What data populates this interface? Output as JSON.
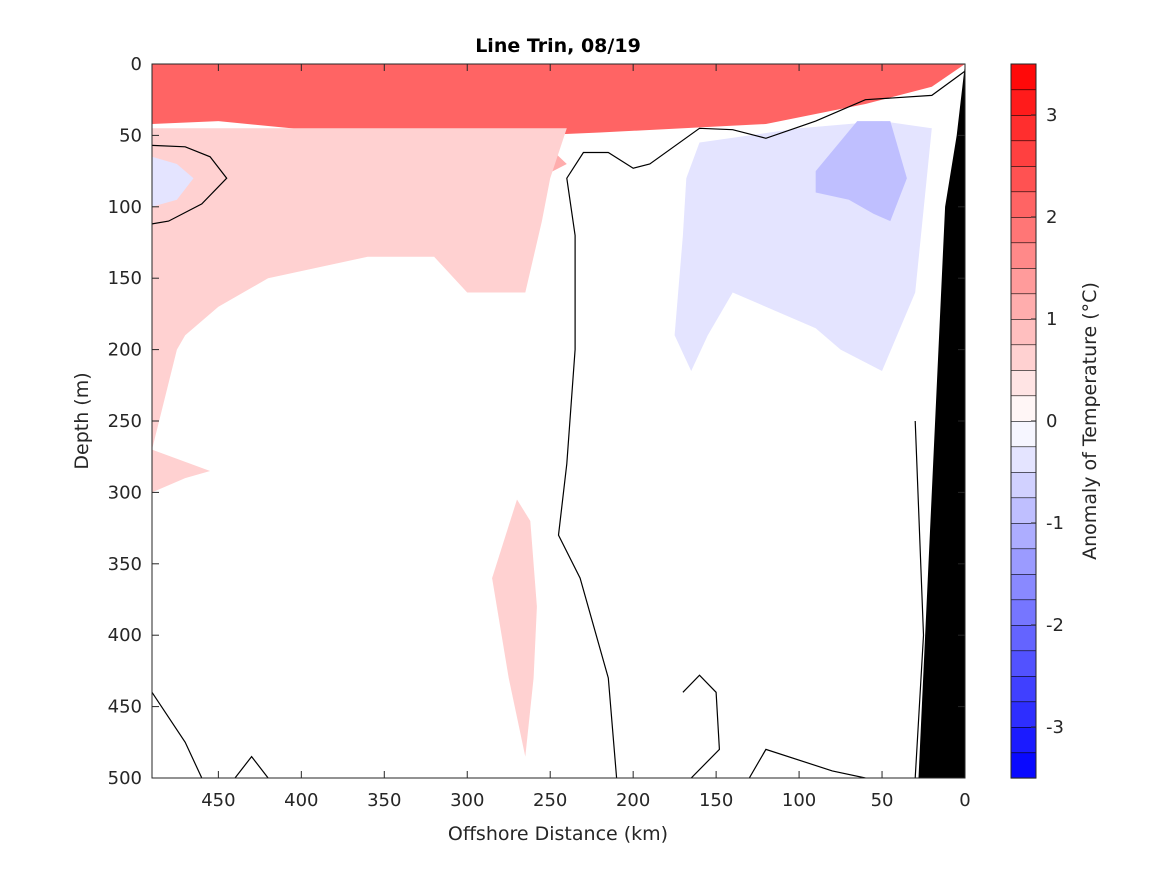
{
  "chart_data": {
    "type": "heatmap",
    "title": "Line Trin, 08/19",
    "xlabel": "Offshore Distance (km)",
    "ylabel": "Depth (m)",
    "colorbar_label": "Anomaly of Temperature (°C)",
    "x_reversed": true,
    "y_reversed": true,
    "xlim": [
      0,
      490
    ],
    "ylim": [
      0,
      500
    ],
    "x_ticks": [
      450,
      400,
      350,
      300,
      250,
      200,
      150,
      100,
      50,
      0
    ],
    "y_ticks": [
      0,
      50,
      100,
      150,
      200,
      250,
      300,
      350,
      400,
      450,
      500
    ],
    "colorbar_range": [
      -3.5,
      3.5
    ],
    "colorbar_levels": 28,
    "colorbar_ticks": [
      3,
      2,
      1,
      0,
      -1,
      -2,
      -3
    ],
    "colormap": {
      "negative": "#0000ff",
      "zero": "#ffffff",
      "positive": "#ff0000"
    },
    "bathymetry_color": "#000000",
    "grid": false,
    "regions": [
      {
        "name": "surface-warm-layer",
        "anomaly": 3.0,
        "outline": [
          [
            490,
            0
          ],
          [
            0,
            0
          ],
          [
            30,
            8
          ],
          [
            80,
            18
          ],
          [
            150,
            28
          ],
          [
            250,
            30
          ],
          [
            350,
            28
          ],
          [
            450,
            20
          ],
          [
            490,
            22
          ]
        ]
      },
      {
        "name": "upper-warm-layer",
        "anomaly": 2.0,
        "outline": [
          [
            490,
            0
          ],
          [
            0,
            0
          ],
          [
            20,
            16
          ],
          [
            60,
            28
          ],
          [
            120,
            42
          ],
          [
            220,
            48
          ],
          [
            300,
            52
          ],
          [
            380,
            48
          ],
          [
            450,
            40
          ],
          [
            490,
            42
          ]
        ]
      },
      {
        "name": "subsurface-warm-tongue",
        "anomaly": 1.0,
        "outline": [
          [
            490,
            50
          ],
          [
            300,
            50
          ],
          [
            260,
            48
          ],
          [
            240,
            70
          ],
          [
            265,
            85
          ],
          [
            300,
            100
          ],
          [
            330,
            85
          ],
          [
            360,
            90
          ],
          [
            380,
            125
          ],
          [
            410,
            110
          ],
          [
            450,
            100
          ],
          [
            470,
            70
          ],
          [
            490,
            60
          ]
        ]
      },
      {
        "name": "deep-warm-region",
        "anomaly": 0.5,
        "outline": [
          [
            490,
            45
          ],
          [
            240,
            45
          ],
          [
            250,
            80
          ],
          [
            255,
            110
          ],
          [
            265,
            160
          ],
          [
            300,
            160
          ],
          [
            320,
            135
          ],
          [
            360,
            135
          ],
          [
            420,
            150
          ],
          [
            450,
            170
          ],
          [
            470,
            190
          ],
          [
            475,
            200
          ],
          [
            490,
            270
          ],
          [
            455,
            285
          ],
          [
            470,
            290
          ],
          [
            480,
            295
          ],
          [
            490,
            300
          ]
        ]
      },
      {
        "name": "warm-filament",
        "anomaly": 0.5,
        "outline": [
          [
            270,
            305
          ],
          [
            285,
            360
          ],
          [
            275,
            430
          ],
          [
            265,
            485
          ],
          [
            260,
            430
          ],
          [
            258,
            380
          ],
          [
            262,
            320
          ]
        ]
      },
      {
        "name": "nearshore-cool-region",
        "anomaly": -0.5,
        "outline": [
          [
            160,
            55
          ],
          [
            100,
            45
          ],
          [
            50,
            40
          ],
          [
            20,
            45
          ],
          [
            30,
            160
          ],
          [
            50,
            215
          ],
          [
            75,
            200
          ],
          [
            90,
            185
          ],
          [
            140,
            160
          ],
          [
            155,
            190
          ],
          [
            165,
            215
          ],
          [
            175,
            190
          ],
          [
            170,
            120
          ],
          [
            168,
            80
          ]
        ]
      },
      {
        "name": "nearshore-cool-core",
        "anomaly": -1.0,
        "outline": [
          [
            90,
            75
          ],
          [
            65,
            40
          ],
          [
            45,
            40
          ],
          [
            35,
            80
          ],
          [
            45,
            110
          ],
          [
            55,
            105
          ],
          [
            70,
            95
          ],
          [
            90,
            90
          ]
        ]
      },
      {
        "name": "offshore-cool-eddy",
        "anomaly": -0.5,
        "outline": [
          [
            490,
            65
          ],
          [
            475,
            70
          ],
          [
            465,
            80
          ],
          [
            475,
            95
          ],
          [
            490,
            100
          ]
        ]
      }
    ],
    "zero_contours": [
      [
        [
          490,
          57
        ],
        [
          470,
          58
        ],
        [
          455,
          65
        ],
        [
          445,
          80
        ],
        [
          460,
          98
        ],
        [
          480,
          110
        ],
        [
          490,
          112
        ]
      ],
      [
        [
          0,
          5
        ],
        [
          20,
          22
        ],
        [
          60,
          25
        ],
        [
          90,
          40
        ],
        [
          120,
          52
        ],
        [
          140,
          46
        ],
        [
          160,
          45
        ],
        [
          190,
          70
        ],
        [
          200,
          73
        ],
        [
          215,
          62
        ],
        [
          230,
          62
        ],
        [
          240,
          80
        ],
        [
          235,
          120
        ],
        [
          235,
          200
        ],
        [
          240,
          280
        ],
        [
          245,
          330
        ],
        [
          232,
          360
        ],
        [
          215,
          430
        ],
        [
          210,
          500
        ]
      ],
      [
        [
          170,
          440
        ],
        [
          160,
          428
        ],
        [
          150,
          440
        ],
        [
          148,
          480
        ],
        [
          165,
          500
        ]
      ],
      [
        [
          490,
          440
        ],
        [
          470,
          475
        ],
        [
          460,
          500
        ]
      ],
      [
        [
          440,
          500
        ],
        [
          430,
          485
        ],
        [
          420,
          500
        ]
      ],
      [
        [
          130,
          500
        ],
        [
          120,
          480
        ],
        [
          80,
          495
        ],
        [
          60,
          500
        ]
      ],
      [
        [
          30,
          250
        ],
        [
          25,
          400
        ],
        [
          30,
          500
        ]
      ]
    ],
    "bathymetry": [
      [
        0,
        0
      ],
      [
        0,
        500
      ],
      [
        28,
        500
      ],
      [
        20,
        300
      ],
      [
        12,
        100
      ],
      [
        5,
        50
      ]
    ]
  }
}
